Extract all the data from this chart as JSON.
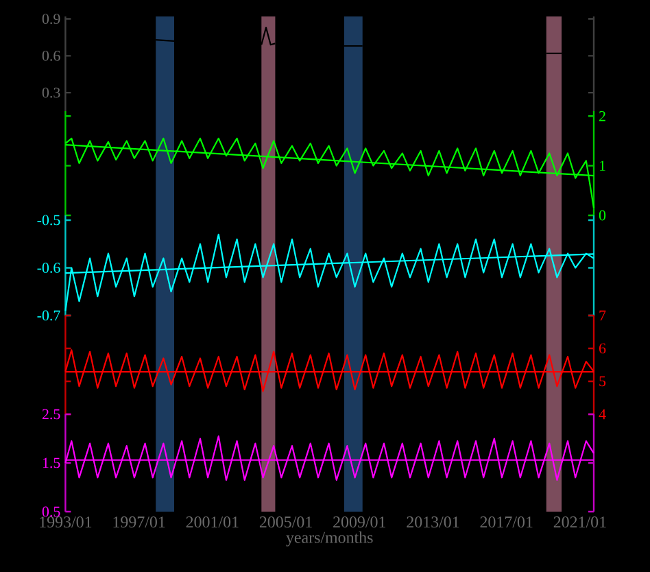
{
  "chart_data": [
    {
      "type": "line",
      "xlim": [
        "1993-01",
        "2021-10"
      ],
      "ylim": [
        0.15,
        0.92
      ],
      "yticks": [
        0.3,
        0.6,
        0.9
      ],
      "tick_labels": "y",
      "bands": [
        {
          "axis": "x",
          "from": "1997-12",
          "to": "1998-12",
          "color": "#1b3a5e"
        },
        {
          "axis": "x",
          "from": "2003-09",
          "to": "2004-06",
          "color": "#7b4c5c"
        },
        {
          "axis": "x",
          "from": "2008-03",
          "to": "2009-03",
          "color": "#1b3a5e"
        },
        {
          "axis": "x",
          "from": "2019-03",
          "to": "2020-01",
          "color": "#7b4c5c"
        }
      ],
      "series": [
        {
          "color": "#000000",
          "x": [
            "1997-12",
            "1998-12",
            "2001-01",
            "2003-09",
            "2003-12",
            "2004-03",
            "2004-06",
            "2006-01",
            "2008-03",
            "2009-03",
            "2014-01",
            "2019-03",
            "2020-01"
          ],
          "values": [
            0.73,
            0.72,
            null,
            0.69,
            0.83,
            0.69,
            0.7,
            null,
            0.68,
            0.68,
            null,
            0.62,
            0.62
          ]
        }
      ]
    },
    {
      "type": "line",
      "xlim": [
        "1993-01",
        "2021-10"
      ],
      "y2lim": [
        0,
        2.1
      ],
      "y2ticks": [
        0,
        1,
        2
      ],
      "tick_labels": "y",
      "bands": [
        {
          "axis": "x",
          "from": "1997-12",
          "to": "1998-12",
          "color": "#1b3a5e"
        },
        {
          "axis": "x",
          "from": "2003-09",
          "to": "2004-06",
          "color": "#7b4c5c"
        },
        {
          "axis": "x",
          "from": "2008-03",
          "to": "2009-03",
          "color": "#1b3a5e"
        },
        {
          "axis": "x",
          "from": "2019-03",
          "to": "2020-01",
          "color": "#7b4c5c"
        }
      ],
      "series": [
        {
          "color": "#00ff00",
          "axis": "y2",
          "x": [
            "1993-01",
            "1993-05",
            "1993-10",
            "1994-05",
            "1994-10",
            "1995-05",
            "1995-10",
            "1996-05",
            "1996-10",
            "1997-05",
            "1997-10",
            "1998-05",
            "1998-10",
            "1999-05",
            "1999-10",
            "2000-05",
            "2000-10",
            "2001-05",
            "2001-10",
            "2002-05",
            "2002-10",
            "2003-05",
            "2003-10",
            "2004-05",
            "2004-10",
            "2005-05",
            "2005-10",
            "2006-05",
            "2006-10",
            "2007-05",
            "2007-10",
            "2008-05",
            "2008-10",
            "2009-05",
            "2009-10",
            "2010-05",
            "2010-10",
            "2011-05",
            "2011-10",
            "2012-05",
            "2012-10",
            "2013-05",
            "2013-10",
            "2014-05",
            "2014-10",
            "2015-05",
            "2015-10",
            "2016-05",
            "2016-10",
            "2017-05",
            "2017-10",
            "2018-05",
            "2018-10",
            "2019-05",
            "2019-10",
            "2020-05",
            "2020-10",
            "2021-05",
            "2021-10"
          ],
          "values": [
            1.45,
            1.55,
            1.05,
            1.5,
            1.1,
            1.48,
            1.12,
            1.5,
            1.15,
            1.5,
            1.1,
            1.55,
            1.05,
            1.5,
            1.15,
            1.55,
            1.15,
            1.55,
            1.2,
            1.55,
            1.1,
            1.45,
            0.95,
            1.5,
            1.05,
            1.4,
            1.1,
            1.45,
            1.05,
            1.4,
            1.0,
            1.35,
            0.85,
            1.35,
            1.0,
            1.3,
            0.95,
            1.25,
            0.9,
            1.3,
            0.8,
            1.3,
            0.85,
            1.35,
            0.9,
            1.35,
            0.8,
            1.3,
            0.85,
            1.3,
            0.8,
            1.3,
            0.85,
            1.25,
            0.8,
            1.25,
            0.75,
            1.1,
            0.15
          ]
        },
        {
          "color": "#00ff00",
          "axis": "y2",
          "x": [
            "1993-01",
            "2021-10"
          ],
          "values": [
            1.42,
            0.8
          ]
        }
      ]
    },
    {
      "type": "line",
      "xlim": [
        "1993-01",
        "2021-10"
      ],
      "ylim": [
        -0.7,
        -0.49
      ],
      "yticks": [
        -0.7,
        -0.6,
        -0.5
      ],
      "tick_labels": "y",
      "bands": [
        {
          "axis": "x",
          "from": "1997-12",
          "to": "1998-12",
          "color": "#1b3a5e"
        },
        {
          "axis": "x",
          "from": "2003-09",
          "to": "2004-06",
          "color": "#7b4c5c"
        },
        {
          "axis": "x",
          "from": "2008-03",
          "to": "2009-03",
          "color": "#1b3a5e"
        },
        {
          "axis": "x",
          "from": "2019-03",
          "to": "2020-01",
          "color": "#7b4c5c"
        }
      ],
      "series": [
        {
          "color": "#00ffff",
          "x": [
            "1993-01",
            "1993-05",
            "1993-10",
            "1994-05",
            "1994-10",
            "1995-05",
            "1995-10",
            "1996-05",
            "1996-10",
            "1997-05",
            "1997-10",
            "1998-05",
            "1998-10",
            "1999-05",
            "1999-10",
            "2000-05",
            "2000-10",
            "2001-05",
            "2001-10",
            "2002-05",
            "2002-10",
            "2003-05",
            "2003-10",
            "2004-05",
            "2004-10",
            "2005-05",
            "2005-10",
            "2006-05",
            "2006-10",
            "2007-05",
            "2007-10",
            "2008-05",
            "2008-10",
            "2009-05",
            "2009-10",
            "2010-05",
            "2010-10",
            "2011-05",
            "2011-10",
            "2012-05",
            "2012-10",
            "2013-05",
            "2013-10",
            "2014-05",
            "2014-10",
            "2015-05",
            "2015-10",
            "2016-05",
            "2016-10",
            "2017-05",
            "2017-10",
            "2018-05",
            "2018-10",
            "2019-05",
            "2019-10",
            "2020-05",
            "2020-10",
            "2021-05",
            "2021-10"
          ],
          "values": [
            -0.69,
            -0.6,
            -0.67,
            -0.58,
            -0.66,
            -0.57,
            -0.64,
            -0.58,
            -0.66,
            -0.57,
            -0.64,
            -0.58,
            -0.65,
            -0.58,
            -0.63,
            -0.55,
            -0.63,
            -0.53,
            -0.62,
            -0.54,
            -0.63,
            -0.55,
            -0.62,
            -0.55,
            -0.63,
            -0.54,
            -0.62,
            -0.56,
            -0.64,
            -0.57,
            -0.62,
            -0.57,
            -0.64,
            -0.57,
            -0.63,
            -0.58,
            -0.64,
            -0.57,
            -0.62,
            -0.56,
            -0.63,
            -0.55,
            -0.62,
            -0.55,
            -0.62,
            -0.54,
            -0.61,
            -0.54,
            -0.62,
            -0.55,
            -0.62,
            -0.55,
            -0.61,
            -0.56,
            -0.62,
            -0.57,
            -0.6,
            -0.57,
            -0.58
          ]
        },
        {
          "color": "#00ffff",
          "x": [
            "1993-01",
            "2021-10"
          ],
          "values": [
            -0.611,
            -0.571
          ]
        }
      ]
    },
    {
      "type": "line",
      "xlim": [
        "1993-01",
        "2021-10"
      ],
      "y2lim": [
        4,
        7
      ],
      "y2ticks": [
        4,
        5,
        6,
        7
      ],
      "tick_labels": "y",
      "bands": [
        {
          "axis": "x",
          "from": "1997-12",
          "to": "1998-12",
          "color": "#1b3a5e"
        },
        {
          "axis": "x",
          "from": "2003-09",
          "to": "2004-06",
          "color": "#7b4c5c"
        },
        {
          "axis": "x",
          "from": "2008-03",
          "to": "2009-03",
          "color": "#1b3a5e"
        },
        {
          "axis": "x",
          "from": "2019-03",
          "to": "2020-01",
          "color": "#7b4c5c"
        }
      ],
      "series": [
        {
          "color": "#ff0000",
          "axis": "y2",
          "x": [
            "1993-01",
            "1993-05",
            "1993-10",
            "1994-05",
            "1994-10",
            "1995-05",
            "1995-10",
            "1996-05",
            "1996-10",
            "1997-05",
            "1997-10",
            "1998-05",
            "1998-10",
            "1999-05",
            "1999-10",
            "2000-05",
            "2000-10",
            "2001-05",
            "2001-10",
            "2002-05",
            "2002-10",
            "2003-05",
            "2003-10",
            "2004-05",
            "2004-10",
            "2005-05",
            "2005-10",
            "2006-05",
            "2006-10",
            "2007-05",
            "2007-10",
            "2008-05",
            "2008-10",
            "2009-05",
            "2009-10",
            "2010-05",
            "2010-10",
            "2011-05",
            "2011-10",
            "2012-05",
            "2012-10",
            "2013-05",
            "2013-10",
            "2014-05",
            "2014-10",
            "2015-05",
            "2015-10",
            "2016-05",
            "2016-10",
            "2017-05",
            "2017-10",
            "2018-05",
            "2018-10",
            "2019-05",
            "2019-10",
            "2020-05",
            "2020-10",
            "2021-05",
            "2021-10"
          ],
          "values": [
            5.3,
            5.95,
            4.85,
            5.9,
            4.8,
            5.85,
            4.85,
            5.85,
            4.8,
            5.8,
            4.85,
            5.7,
            4.9,
            5.75,
            4.85,
            5.7,
            4.8,
            5.75,
            4.85,
            5.75,
            4.75,
            5.8,
            4.7,
            5.9,
            4.8,
            5.85,
            4.8,
            5.8,
            4.8,
            5.85,
            4.75,
            5.8,
            4.75,
            5.8,
            4.8,
            5.85,
            4.85,
            5.8,
            4.8,
            5.75,
            4.85,
            5.8,
            4.8,
            5.9,
            4.8,
            5.85,
            4.8,
            5.8,
            4.8,
            5.85,
            4.8,
            5.8,
            4.8,
            5.8,
            4.85,
            5.75,
            4.8,
            5.6,
            5.3
          ]
        },
        {
          "color": "#ff0000",
          "axis": "y2",
          "x": [
            "1993-01",
            "2021-10"
          ],
          "values": [
            5.29,
            5.29
          ]
        }
      ]
    },
    {
      "type": "line",
      "xlim": [
        "1993-01",
        "2021-10"
      ],
      "xlabel": "years/months",
      "xticks": [
        {
          "value": "1993-01",
          "label": "1993/01"
        },
        {
          "value": "1997-01",
          "label": "1997/01"
        },
        {
          "value": "2001-01",
          "label": "2001/01"
        },
        {
          "value": "2005-01",
          "label": "2005/01"
        },
        {
          "value": "2009-01",
          "label": "2009/01"
        },
        {
          "value": "2013-01",
          "label": "2013/01"
        },
        {
          "value": "2017-01",
          "label": "2017/01"
        },
        {
          "value": "2021-01",
          "label": "2021/01"
        }
      ],
      "ylim": [
        0.5,
        2.5
      ],
      "yticks": [
        0.5,
        1.5,
        2.5
      ],
      "bands": [
        {
          "axis": "x",
          "from": "1997-12",
          "to": "1998-12",
          "color": "#1b3a5e"
        },
        {
          "axis": "x",
          "from": "2003-09",
          "to": "2004-06",
          "color": "#7b4c5c"
        },
        {
          "axis": "x",
          "from": "2008-03",
          "to": "2009-03",
          "color": "#1b3a5e"
        },
        {
          "axis": "x",
          "from": "2019-03",
          "to": "2020-01",
          "color": "#7b4c5c"
        }
      ],
      "series": [
        {
          "color": "#ff00ff",
          "x": [
            "1993-01",
            "1993-05",
            "1993-10",
            "1994-05",
            "1994-10",
            "1995-05",
            "1995-10",
            "1996-05",
            "1996-10",
            "1997-05",
            "1997-10",
            "1998-05",
            "1998-10",
            "1999-05",
            "1999-10",
            "2000-05",
            "2000-10",
            "2001-05",
            "2001-10",
            "2002-05",
            "2002-10",
            "2003-05",
            "2003-10",
            "2004-05",
            "2004-10",
            "2005-05",
            "2005-10",
            "2006-05",
            "2006-10",
            "2007-05",
            "2007-10",
            "2008-05",
            "2008-10",
            "2009-05",
            "2009-10",
            "2010-05",
            "2010-10",
            "2011-05",
            "2011-10",
            "2012-05",
            "2012-10",
            "2013-05",
            "2013-10",
            "2014-05",
            "2014-10",
            "2015-05",
            "2015-10",
            "2016-05",
            "2016-10",
            "2017-05",
            "2017-10",
            "2018-05",
            "2018-10",
            "2019-05",
            "2019-10",
            "2020-05",
            "2020-10",
            "2021-05",
            "2021-10"
          ],
          "values": [
            1.5,
            1.95,
            1.2,
            1.9,
            1.2,
            1.9,
            1.2,
            1.85,
            1.2,
            1.9,
            1.2,
            1.9,
            1.2,
            1.95,
            1.2,
            2.0,
            1.2,
            2.05,
            1.15,
            1.95,
            1.15,
            1.9,
            1.2,
            1.85,
            1.2,
            1.85,
            1.2,
            1.9,
            1.2,
            1.9,
            1.15,
            1.85,
            1.2,
            1.9,
            1.2,
            1.9,
            1.2,
            1.9,
            1.2,
            1.9,
            1.2,
            1.95,
            1.2,
            1.95,
            1.2,
            1.95,
            1.2,
            2.0,
            1.2,
            1.95,
            1.2,
            1.95,
            1.2,
            1.9,
            1.15,
            1.95,
            1.2,
            1.95,
            1.7
          ]
        },
        {
          "color": "#ff00ff",
          "x": [
            "1993-01",
            "2021-10"
          ],
          "values": [
            1.56,
            1.56
          ]
        }
      ]
    }
  ]
}
